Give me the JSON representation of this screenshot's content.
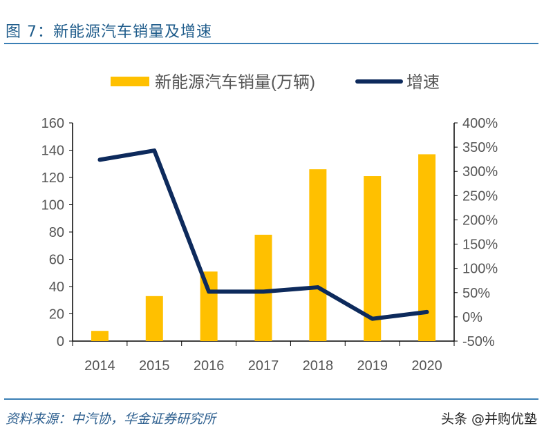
{
  "header": {
    "title": "图 7：新能源汽车销量及增速"
  },
  "footer": {
    "source": "资料来源：中汽协，华金证券研究所",
    "watermark": "头条 @并购优塾"
  },
  "colors": {
    "bar": "#FFC000",
    "line": "#0D2A5C",
    "title": "#1F5C8B",
    "rule": "#3A7FB5"
  },
  "chart_data": {
    "type": "bar+line",
    "title": "",
    "categories": [
      "2014",
      "2015",
      "2016",
      "2017",
      "2018",
      "2019",
      "2020"
    ],
    "series": [
      {
        "name": "新能源汽车销量(万辆)",
        "type": "bar",
        "axis": "left",
        "values": [
          7.5,
          33,
          51,
          78,
          126,
          121,
          137
        ]
      },
      {
        "name": "增速",
        "type": "line",
        "axis": "right",
        "values": [
          324,
          343,
          52,
          52,
          61,
          -4,
          10
        ]
      }
    ],
    "y_left": {
      "ylim": [
        0,
        160
      ],
      "ticks": [
        "0",
        "20",
        "40",
        "60",
        "80",
        "100",
        "120",
        "140",
        "160"
      ]
    },
    "y_right": {
      "ylim": [
        -50,
        400
      ],
      "unit": "%",
      "ticks": [
        "-50%",
        "0%",
        "50%",
        "100%",
        "150%",
        "200%",
        "250%",
        "300%",
        "350%",
        "400%"
      ]
    },
    "legend": "top",
    "grid": false
  }
}
